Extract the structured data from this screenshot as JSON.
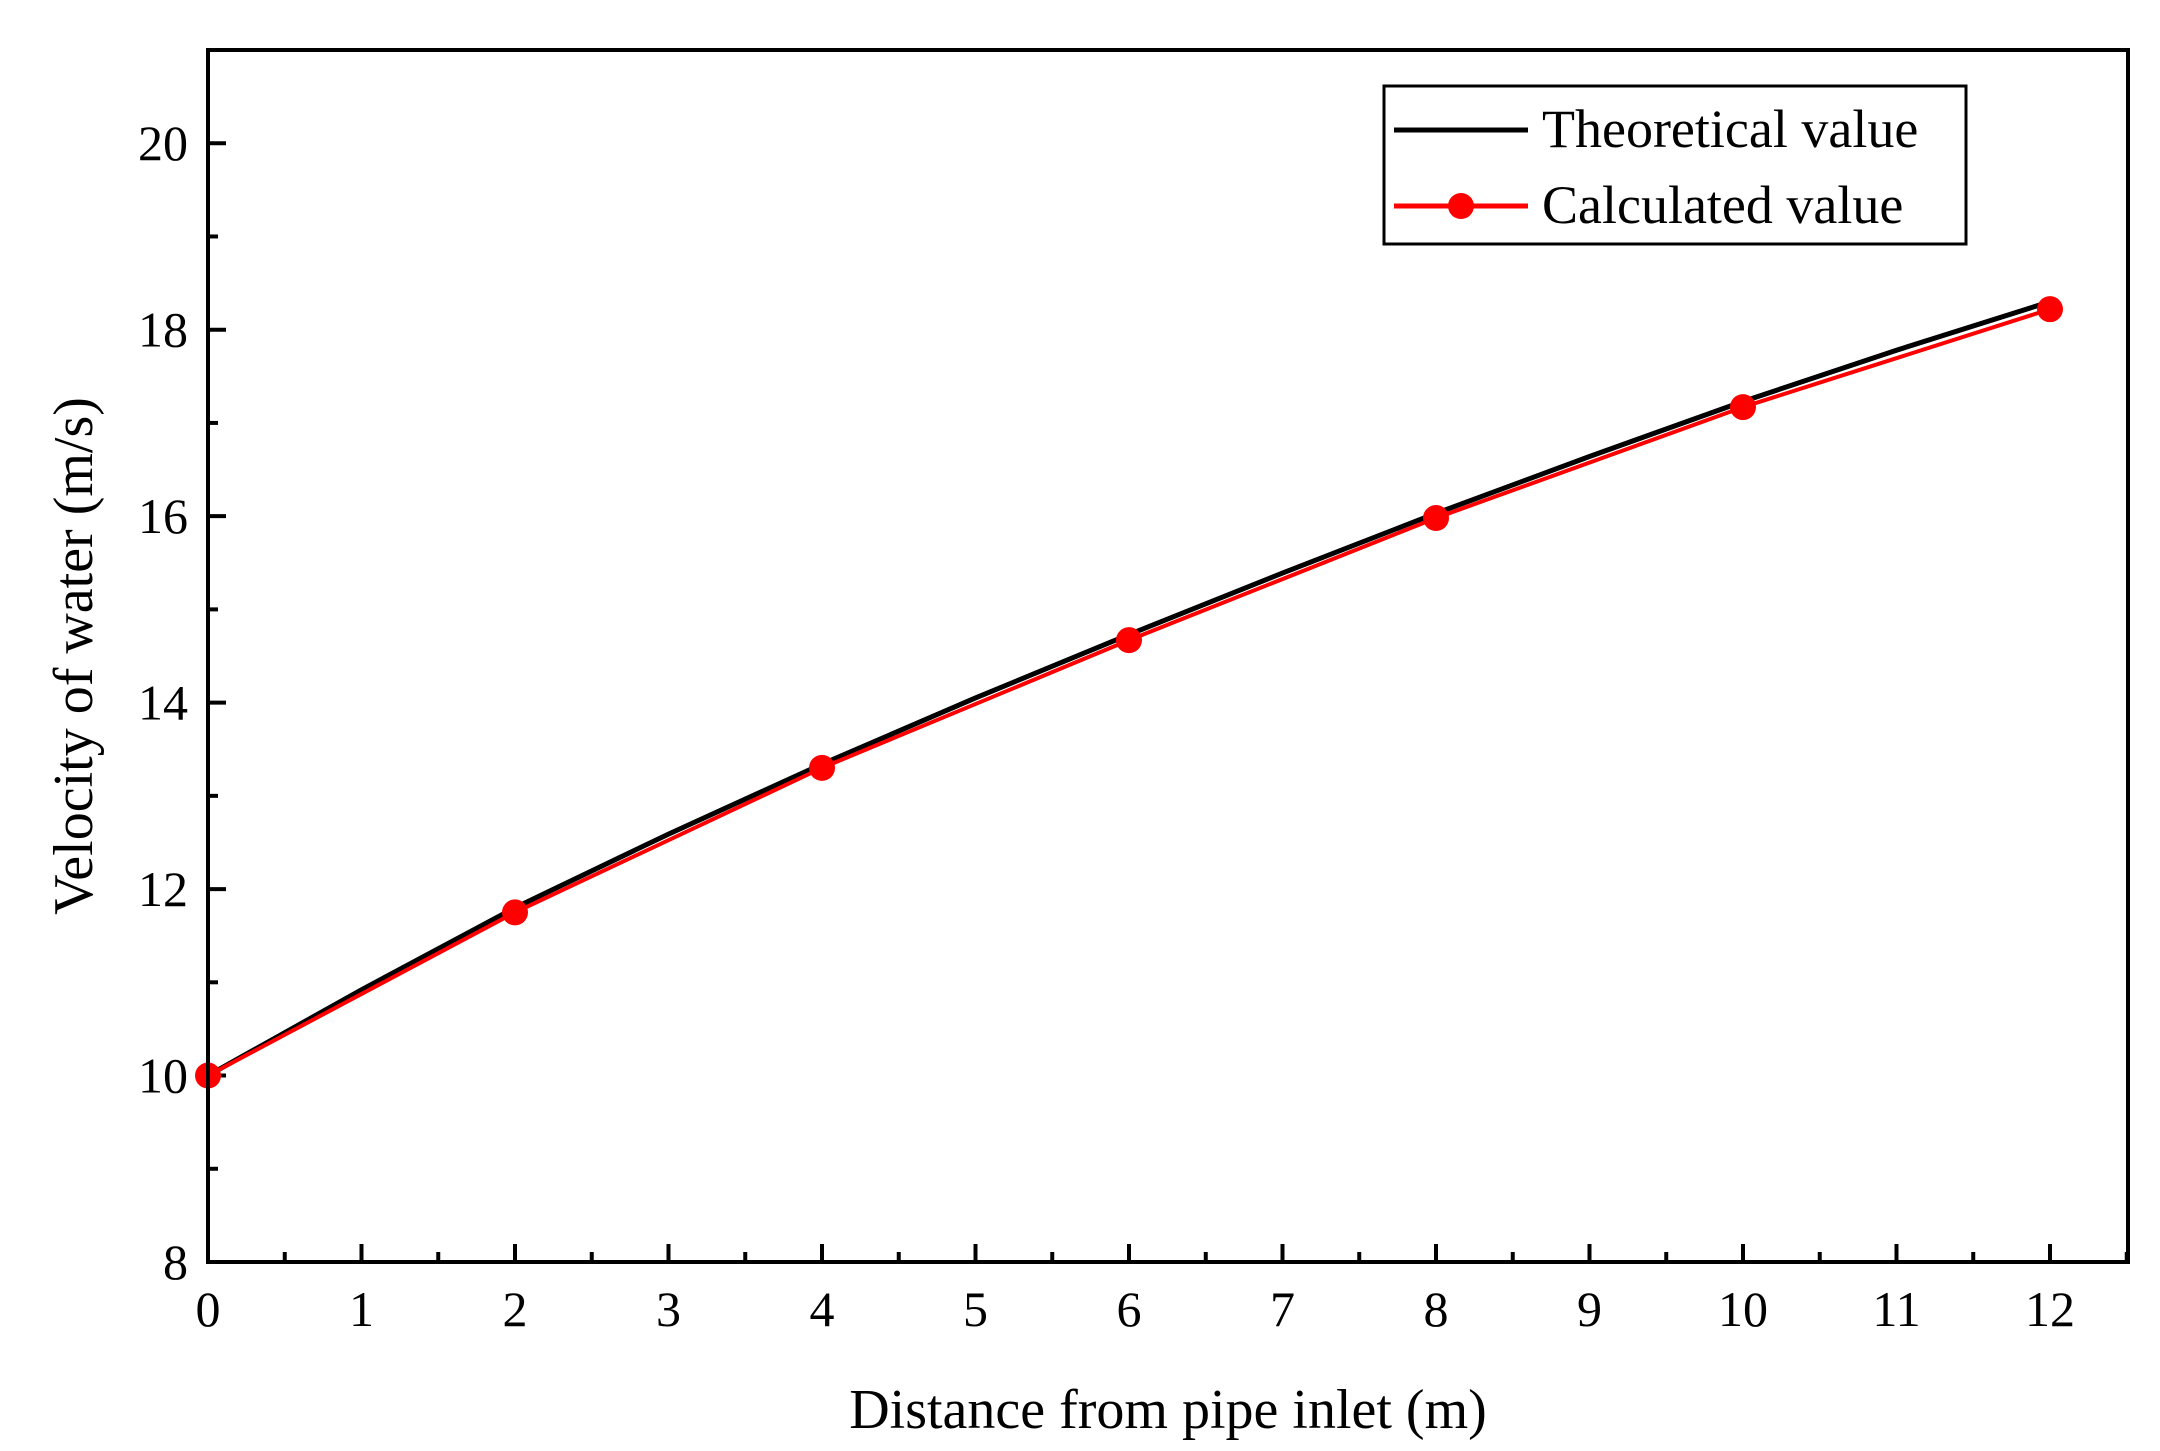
{
  "chart_data": {
    "type": "line",
    "title": "",
    "xlabel": "Distance from pipe inlet (m)",
    "ylabel": "Velocity of water (m/s)",
    "xlim": [
      0,
      12.5
    ],
    "ylim": [
      8,
      21
    ],
    "x_ticks": [
      0,
      1,
      2,
      3,
      4,
      5,
      6,
      7,
      8,
      9,
      10,
      11,
      12
    ],
    "x_tick_labels": [
      "0",
      "1",
      "2",
      "3",
      "4",
      "5",
      "6",
      "7",
      "8",
      "9",
      "10",
      "11",
      "12"
    ],
    "y_ticks": [
      8,
      10,
      12,
      14,
      16,
      18,
      20
    ],
    "y_tick_labels": [
      "8",
      "10",
      "12",
      "14",
      "16",
      "18",
      "20"
    ],
    "grid": false,
    "legend_position": "top-right",
    "series": [
      {
        "name": "Theoretical value",
        "color": "#000000",
        "marker": "none",
        "x": [
          0,
          1,
          2,
          3,
          4,
          5,
          6,
          7,
          8,
          9,
          10,
          11,
          12
        ],
        "values": [
          10.0,
          10.92,
          11.8,
          12.59,
          13.34,
          14.05,
          14.73,
          15.39,
          16.03,
          16.64,
          17.23,
          17.78,
          18.3
        ]
      },
      {
        "name": "Calculated value",
        "color": "#ff0000",
        "marker": "circle",
        "x": [
          0,
          2,
          4,
          6,
          8,
          10,
          12
        ],
        "values": [
          10.0,
          11.75,
          13.3,
          14.67,
          15.98,
          17.17,
          18.22
        ]
      }
    ]
  }
}
